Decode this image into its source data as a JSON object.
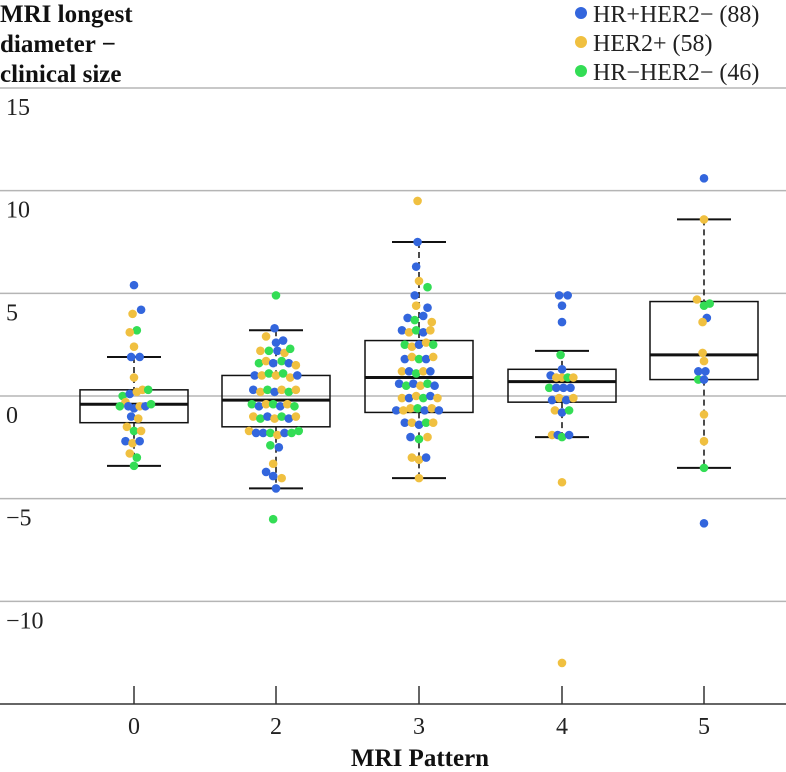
{
  "chart_data": {
    "type": "scatter",
    "subtype": "box-plot-with-beeswarm",
    "ylabel_lines": [
      "MRI longest",
      "diameter −",
      "clinical size"
    ],
    "xlabel": "MRI Pattern",
    "categories": [
      "0",
      "2",
      "3",
      "4",
      "5"
    ],
    "ylim": [
      -15,
      15
    ],
    "yticks": [
      {
        "value": 15,
        "label": "15"
      },
      {
        "value": 10,
        "label": "10"
      },
      {
        "value": 5,
        "label": "5"
      },
      {
        "value": 0,
        "label": "0"
      },
      {
        "value": -5,
        "label": "−5"
      },
      {
        "value": -10,
        "label": "−10"
      }
    ],
    "grid": true,
    "legend_position": "top-right",
    "series": [
      {
        "name": "HR+HER2− (88)",
        "color": "#3366dd"
      },
      {
        "name": "HER2+ (58)",
        "color": "#f0c040"
      },
      {
        "name": "HR−HER2− (46)",
        "color": "#33dd55"
      }
    ],
    "boxes": [
      {
        "category": "0",
        "whisker_low": -3.4,
        "q1": -1.3,
        "median": -0.4,
        "q3": 0.3,
        "whisker_high": 1.9
      },
      {
        "category": "2",
        "whisker_low": -4.5,
        "q1": -1.5,
        "median": -0.2,
        "q3": 1.0,
        "whisker_high": 3.2
      },
      {
        "category": "3",
        "whisker_low": -4.0,
        "q1": -0.8,
        "median": 0.9,
        "q3": 2.7,
        "whisker_high": 7.5
      },
      {
        "category": "4",
        "whisker_low": -2.0,
        "q1": -0.3,
        "median": 0.7,
        "q3": 1.3,
        "whisker_high": 2.2
      },
      {
        "category": "5",
        "whisker_low": -3.5,
        "q1": 0.8,
        "median": 2.0,
        "q3": 4.6,
        "whisker_high": 8.6
      }
    ],
    "points": [
      {
        "c": 0,
        "dx": -0.0,
        "y": 5.4,
        "s": 0
      },
      {
        "c": 0,
        "dx": 0.05,
        "y": 4.2,
        "s": 0
      },
      {
        "c": 0,
        "dx": -0.01,
        "y": 4.0,
        "s": 1
      },
      {
        "c": 0,
        "dx": 0.02,
        "y": 3.2,
        "s": 2
      },
      {
        "c": 0,
        "dx": -0.03,
        "y": 3.1,
        "s": 1
      },
      {
        "c": 0,
        "dx": 0.0,
        "y": 2.4,
        "s": 1
      },
      {
        "c": 0,
        "dx": -0.02,
        "y": 1.9,
        "s": 0
      },
      {
        "c": 0,
        "dx": 0.04,
        "y": 1.9,
        "s": 0
      },
      {
        "c": 0,
        "dx": 0.0,
        "y": 0.9,
        "s": 1
      },
      {
        "c": 0,
        "dx": -0.08,
        "y": 0.0,
        "s": 2
      },
      {
        "c": 0,
        "dx": -0.03,
        "y": 0.1,
        "s": 0
      },
      {
        "c": 0,
        "dx": 0.02,
        "y": 0.2,
        "s": 1
      },
      {
        "c": 0,
        "dx": 0.06,
        "y": 0.3,
        "s": 1
      },
      {
        "c": 0,
        "dx": 0.1,
        "y": 0.3,
        "s": 2
      },
      {
        "c": 0,
        "dx": -0.06,
        "y": -0.3,
        "s": 1
      },
      {
        "c": 0,
        "dx": -0.1,
        "y": -0.5,
        "s": 2
      },
      {
        "c": 0,
        "dx": -0.04,
        "y": -0.5,
        "s": 0
      },
      {
        "c": 0,
        "dx": 0.0,
        "y": -0.6,
        "s": 0
      },
      {
        "c": 0,
        "dx": 0.04,
        "y": -0.5,
        "s": 1
      },
      {
        "c": 0,
        "dx": 0.08,
        "y": -0.5,
        "s": 0
      },
      {
        "c": 0,
        "dx": 0.12,
        "y": -0.4,
        "s": 2
      },
      {
        "c": 0,
        "dx": -0.02,
        "y": -1.0,
        "s": 0
      },
      {
        "c": 0,
        "dx": 0.03,
        "y": -1.1,
        "s": 1
      },
      {
        "c": 0,
        "dx": -0.05,
        "y": -1.5,
        "s": 1
      },
      {
        "c": 0,
        "dx": 0.0,
        "y": -1.7,
        "s": 2
      },
      {
        "c": 0,
        "dx": 0.05,
        "y": -1.7,
        "s": 1
      },
      {
        "c": 0,
        "dx": -0.06,
        "y": -2.2,
        "s": 0
      },
      {
        "c": 0,
        "dx": -0.01,
        "y": -2.3,
        "s": 1
      },
      {
        "c": 0,
        "dx": 0.04,
        "y": -2.2,
        "s": 0
      },
      {
        "c": 0,
        "dx": -0.03,
        "y": -2.8,
        "s": 1
      },
      {
        "c": 0,
        "dx": 0.02,
        "y": -3.0,
        "s": 2
      },
      {
        "c": 0,
        "dx": 0.0,
        "y": -3.4,
        "s": 2
      },
      {
        "c": 1,
        "dx": 0.0,
        "y": 4.9,
        "s": 2
      },
      {
        "c": 1,
        "dx": -0.01,
        "y": 3.3,
        "s": 0
      },
      {
        "c": 1,
        "dx": -0.07,
        "y": 2.9,
        "s": 1
      },
      {
        "c": 1,
        "dx": 0.0,
        "y": 2.6,
        "s": 0
      },
      {
        "c": 1,
        "dx": 0.05,
        "y": 2.7,
        "s": 0
      },
      {
        "c": 1,
        "dx": -0.11,
        "y": 2.2,
        "s": 1
      },
      {
        "c": 1,
        "dx": -0.05,
        "y": 2.2,
        "s": 2
      },
      {
        "c": 1,
        "dx": 0.01,
        "y": 2.2,
        "s": 0
      },
      {
        "c": 1,
        "dx": 0.06,
        "y": 2.1,
        "s": 1
      },
      {
        "c": 1,
        "dx": 0.1,
        "y": 2.3,
        "s": 2
      },
      {
        "c": 1,
        "dx": -0.12,
        "y": 1.6,
        "s": 2
      },
      {
        "c": 1,
        "dx": -0.07,
        "y": 1.7,
        "s": 1
      },
      {
        "c": 1,
        "dx": -0.02,
        "y": 1.6,
        "s": 0
      },
      {
        "c": 1,
        "dx": 0.04,
        "y": 1.7,
        "s": 2
      },
      {
        "c": 1,
        "dx": 0.09,
        "y": 1.6,
        "s": 0
      },
      {
        "c": 1,
        "dx": 0.14,
        "y": 1.5,
        "s": 1
      },
      {
        "c": 1,
        "dx": -0.15,
        "y": 1.0,
        "s": 0
      },
      {
        "c": 1,
        "dx": -0.1,
        "y": 1.0,
        "s": 1
      },
      {
        "c": 1,
        "dx": -0.05,
        "y": 1.1,
        "s": 2
      },
      {
        "c": 1,
        "dx": 0.0,
        "y": 1.0,
        "s": 1
      },
      {
        "c": 1,
        "dx": 0.05,
        "y": 1.1,
        "s": 2
      },
      {
        "c": 1,
        "dx": 0.1,
        "y": 0.9,
        "s": 1
      },
      {
        "c": 1,
        "dx": 0.15,
        "y": 1.0,
        "s": 0
      },
      {
        "c": 1,
        "dx": -0.16,
        "y": 0.3,
        "s": 0
      },
      {
        "c": 1,
        "dx": -0.11,
        "y": 0.2,
        "s": 1
      },
      {
        "c": 1,
        "dx": -0.06,
        "y": 0.3,
        "s": 2
      },
      {
        "c": 1,
        "dx": -0.01,
        "y": 0.2,
        "s": 0
      },
      {
        "c": 1,
        "dx": 0.04,
        "y": 0.3,
        "s": 1
      },
      {
        "c": 1,
        "dx": 0.09,
        "y": 0.2,
        "s": 2
      },
      {
        "c": 1,
        "dx": 0.14,
        "y": 0.3,
        "s": 1
      },
      {
        "c": 1,
        "dx": -0.17,
        "y": -0.4,
        "s": 2
      },
      {
        "c": 1,
        "dx": -0.12,
        "y": -0.5,
        "s": 0
      },
      {
        "c": 1,
        "dx": -0.07,
        "y": -0.4,
        "s": 1
      },
      {
        "c": 1,
        "dx": -0.02,
        "y": -0.4,
        "s": 2
      },
      {
        "c": 1,
        "dx": 0.03,
        "y": -0.5,
        "s": 0
      },
      {
        "c": 1,
        "dx": 0.08,
        "y": -0.4,
        "s": 1
      },
      {
        "c": 1,
        "dx": 0.13,
        "y": -0.5,
        "s": 2
      },
      {
        "c": 1,
        "dx": -0.16,
        "y": -1.0,
        "s": 1
      },
      {
        "c": 1,
        "dx": -0.11,
        "y": -1.1,
        "s": 2
      },
      {
        "c": 1,
        "dx": -0.06,
        "y": -1.0,
        "s": 0
      },
      {
        "c": 1,
        "dx": -0.01,
        "y": -1.1,
        "s": 1
      },
      {
        "c": 1,
        "dx": 0.04,
        "y": -1.0,
        "s": 2
      },
      {
        "c": 1,
        "dx": 0.09,
        "y": -1.1,
        "s": 0
      },
      {
        "c": 1,
        "dx": 0.14,
        "y": -1.0,
        "s": 1
      },
      {
        "c": 1,
        "dx": -0.19,
        "y": -1.7,
        "s": 1
      },
      {
        "c": 1,
        "dx": -0.14,
        "y": -1.8,
        "s": 0
      },
      {
        "c": 1,
        "dx": -0.09,
        "y": -1.8,
        "s": 0
      },
      {
        "c": 1,
        "dx": -0.04,
        "y": -1.8,
        "s": 2
      },
      {
        "c": 1,
        "dx": 0.01,
        "y": -1.9,
        "s": 1
      },
      {
        "c": 1,
        "dx": 0.06,
        "y": -1.8,
        "s": 0
      },
      {
        "c": 1,
        "dx": 0.11,
        "y": -1.8,
        "s": 2
      },
      {
        "c": 1,
        "dx": 0.16,
        "y": -1.7,
        "s": 2
      },
      {
        "c": 1,
        "dx": -0.04,
        "y": -2.4,
        "s": 2
      },
      {
        "c": 1,
        "dx": 0.02,
        "y": -2.5,
        "s": 0
      },
      {
        "c": 1,
        "dx": -0.02,
        "y": -3.3,
        "s": 1
      },
      {
        "c": 1,
        "dx": -0.07,
        "y": -3.7,
        "s": 0
      },
      {
        "c": 1,
        "dx": -0.02,
        "y": -3.9,
        "s": 0
      },
      {
        "c": 1,
        "dx": 0.04,
        "y": -4.0,
        "s": 1
      },
      {
        "c": 1,
        "dx": 0.0,
        "y": -4.5,
        "s": 0
      },
      {
        "c": 1,
        "dx": -0.02,
        "y": -6.0,
        "s": 2
      },
      {
        "c": 2,
        "dx": -0.01,
        "y": 9.5,
        "s": 1
      },
      {
        "c": 2,
        "dx": -0.01,
        "y": 7.5,
        "s": 0
      },
      {
        "c": 2,
        "dx": -0.02,
        "y": 6.3,
        "s": 0
      },
      {
        "c": 2,
        "dx": 0.0,
        "y": 5.6,
        "s": 1
      },
      {
        "c": 2,
        "dx": 0.06,
        "y": 5.3,
        "s": 2
      },
      {
        "c": 2,
        "dx": -0.03,
        "y": 4.9,
        "s": 0
      },
      {
        "c": 2,
        "dx": -0.02,
        "y": 4.4,
        "s": 1
      },
      {
        "c": 2,
        "dx": 0.06,
        "y": 4.3,
        "s": 0
      },
      {
        "c": 2,
        "dx": -0.08,
        "y": 3.8,
        "s": 0
      },
      {
        "c": 2,
        "dx": -0.03,
        "y": 3.7,
        "s": 2
      },
      {
        "c": 2,
        "dx": 0.03,
        "y": 3.9,
        "s": 0
      },
      {
        "c": 2,
        "dx": 0.09,
        "y": 3.6,
        "s": 1
      },
      {
        "c": 2,
        "dx": -0.12,
        "y": 3.2,
        "s": 0
      },
      {
        "c": 2,
        "dx": -0.07,
        "y": 3.1,
        "s": 1
      },
      {
        "c": 2,
        "dx": -0.02,
        "y": 3.2,
        "s": 2
      },
      {
        "c": 2,
        "dx": 0.03,
        "y": 3.1,
        "s": 0
      },
      {
        "c": 2,
        "dx": 0.08,
        "y": 3.2,
        "s": 1
      },
      {
        "c": 2,
        "dx": -0.1,
        "y": 2.5,
        "s": 2
      },
      {
        "c": 2,
        "dx": -0.05,
        "y": 2.4,
        "s": 1
      },
      {
        "c": 2,
        "dx": 0.0,
        "y": 2.5,
        "s": 0
      },
      {
        "c": 2,
        "dx": 0.05,
        "y": 2.6,
        "s": 1
      },
      {
        "c": 2,
        "dx": 0.1,
        "y": 2.5,
        "s": 2
      },
      {
        "c": 2,
        "dx": -0.1,
        "y": 1.8,
        "s": 0
      },
      {
        "c": 2,
        "dx": -0.05,
        "y": 1.9,
        "s": 1
      },
      {
        "c": 2,
        "dx": 0.0,
        "y": 1.8,
        "s": 2
      },
      {
        "c": 2,
        "dx": 0.05,
        "y": 1.8,
        "s": 0
      },
      {
        "c": 2,
        "dx": 0.1,
        "y": 1.9,
        "s": 1
      },
      {
        "c": 2,
        "dx": -0.12,
        "y": 1.2,
        "s": 1
      },
      {
        "c": 2,
        "dx": -0.07,
        "y": 1.2,
        "s": 0
      },
      {
        "c": 2,
        "dx": -0.02,
        "y": 1.1,
        "s": 2
      },
      {
        "c": 2,
        "dx": 0.03,
        "y": 1.2,
        "s": 1
      },
      {
        "c": 2,
        "dx": 0.08,
        "y": 1.2,
        "s": 0
      },
      {
        "c": 2,
        "dx": -0.14,
        "y": 0.6,
        "s": 0
      },
      {
        "c": 2,
        "dx": -0.09,
        "y": 0.5,
        "s": 2
      },
      {
        "c": 2,
        "dx": -0.04,
        "y": 0.6,
        "s": 0
      },
      {
        "c": 2,
        "dx": 0.01,
        "y": 0.5,
        "s": 1
      },
      {
        "c": 2,
        "dx": 0.06,
        "y": 0.6,
        "s": 2
      },
      {
        "c": 2,
        "dx": 0.11,
        "y": 0.5,
        "s": 0
      },
      {
        "c": 2,
        "dx": -0.12,
        "y": -0.1,
        "s": 1
      },
      {
        "c": 2,
        "dx": -0.07,
        "y": -0.1,
        "s": 0
      },
      {
        "c": 2,
        "dx": -0.02,
        "y": 0.0,
        "s": 1
      },
      {
        "c": 2,
        "dx": 0.03,
        "y": -0.1,
        "s": 2
      },
      {
        "c": 2,
        "dx": 0.08,
        "y": 0.0,
        "s": 0
      },
      {
        "c": 2,
        "dx": 0.13,
        "y": -0.1,
        "s": 1
      },
      {
        "c": 2,
        "dx": -0.16,
        "y": -0.7,
        "s": 0
      },
      {
        "c": 2,
        "dx": -0.11,
        "y": -0.7,
        "s": 1
      },
      {
        "c": 2,
        "dx": -0.06,
        "y": -0.6,
        "s": 1
      },
      {
        "c": 2,
        "dx": -0.01,
        "y": -0.6,
        "s": 2
      },
      {
        "c": 2,
        "dx": 0.04,
        "y": -0.7,
        "s": 0
      },
      {
        "c": 2,
        "dx": 0.09,
        "y": -0.6,
        "s": 1
      },
      {
        "c": 2,
        "dx": 0.14,
        "y": -0.7,
        "s": 0
      },
      {
        "c": 2,
        "dx": -0.1,
        "y": -1.3,
        "s": 0
      },
      {
        "c": 2,
        "dx": -0.05,
        "y": -1.3,
        "s": 1
      },
      {
        "c": 2,
        "dx": 0.0,
        "y": -1.4,
        "s": 0
      },
      {
        "c": 2,
        "dx": 0.05,
        "y": -1.3,
        "s": 2
      },
      {
        "c": 2,
        "dx": 0.1,
        "y": -1.3,
        "s": 1
      },
      {
        "c": 2,
        "dx": -0.06,
        "y": -2.0,
        "s": 0
      },
      {
        "c": 2,
        "dx": 0.0,
        "y": -2.1,
        "s": 2
      },
      {
        "c": 2,
        "dx": 0.06,
        "y": -2.0,
        "s": 1
      },
      {
        "c": 2,
        "dx": -0.05,
        "y": -3.0,
        "s": 1
      },
      {
        "c": 2,
        "dx": 0.0,
        "y": -3.1,
        "s": 1
      },
      {
        "c": 2,
        "dx": 0.05,
        "y": -3.0,
        "s": 0
      },
      {
        "c": 2,
        "dx": 0.0,
        "y": -4.0,
        "s": 1
      },
      {
        "c": 3,
        "dx": -0.02,
        "y": 4.9,
        "s": 0
      },
      {
        "c": 3,
        "dx": 0.04,
        "y": 4.9,
        "s": 0
      },
      {
        "c": 3,
        "dx": 0.0,
        "y": 4.4,
        "s": 0
      },
      {
        "c": 3,
        "dx": 0.0,
        "y": 3.6,
        "s": 0
      },
      {
        "c": 3,
        "dx": -0.01,
        "y": 2.0,
        "s": 2
      },
      {
        "c": 3,
        "dx": 0.0,
        "y": 1.3,
        "s": 0
      },
      {
        "c": 3,
        "dx": -0.08,
        "y": 1.0,
        "s": 0
      },
      {
        "c": 3,
        "dx": -0.04,
        "y": 0.9,
        "s": 1
      },
      {
        "c": 3,
        "dx": 0.0,
        "y": 0.9,
        "s": 1
      },
      {
        "c": 3,
        "dx": 0.04,
        "y": 0.9,
        "s": 2
      },
      {
        "c": 3,
        "dx": 0.08,
        "y": 0.9,
        "s": 1
      },
      {
        "c": 3,
        "dx": -0.09,
        "y": 0.4,
        "s": 2
      },
      {
        "c": 3,
        "dx": -0.04,
        "y": 0.4,
        "s": 0
      },
      {
        "c": 3,
        "dx": 0.01,
        "y": 0.4,
        "s": 0
      },
      {
        "c": 3,
        "dx": 0.06,
        "y": 0.4,
        "s": 0
      },
      {
        "c": 3,
        "dx": -0.07,
        "y": -0.2,
        "s": 0
      },
      {
        "c": 3,
        "dx": -0.02,
        "y": -0.1,
        "s": 1
      },
      {
        "c": 3,
        "dx": 0.03,
        "y": -0.2,
        "s": 0
      },
      {
        "c": 3,
        "dx": 0.08,
        "y": -0.1,
        "s": 1
      },
      {
        "c": 3,
        "dx": -0.05,
        "y": -0.7,
        "s": 1
      },
      {
        "c": 3,
        "dx": 0.0,
        "y": -0.8,
        "s": 0
      },
      {
        "c": 3,
        "dx": 0.05,
        "y": -0.7,
        "s": 2
      },
      {
        "c": 3,
        "dx": -0.07,
        "y": -1.9,
        "s": 1
      },
      {
        "c": 3,
        "dx": -0.03,
        "y": -1.9,
        "s": 0
      },
      {
        "c": 3,
        "dx": 0.0,
        "y": -2.0,
        "s": 2
      },
      {
        "c": 3,
        "dx": 0.05,
        "y": -1.9,
        "s": 0
      },
      {
        "c": 3,
        "dx": 0.0,
        "y": -4.2,
        "s": 1
      },
      {
        "c": 3,
        "dx": 0.0,
        "y": -13.0,
        "s": 1
      },
      {
        "c": 4,
        "dx": 0.0,
        "y": 10.6,
        "s": 0
      },
      {
        "c": 4,
        "dx": 0.0,
        "y": 8.6,
        "s": 1
      },
      {
        "c": 4,
        "dx": -0.05,
        "y": 4.7,
        "s": 1
      },
      {
        "c": 4,
        "dx": 0.0,
        "y": 4.4,
        "s": 2
      },
      {
        "c": 4,
        "dx": 0.04,
        "y": 4.5,
        "s": 2
      },
      {
        "c": 4,
        "dx": 0.02,
        "y": 3.8,
        "s": 0
      },
      {
        "c": 4,
        "dx": -0.01,
        "y": 3.6,
        "s": 1
      },
      {
        "c": 4,
        "dx": -0.01,
        "y": 2.1,
        "s": 1
      },
      {
        "c": 4,
        "dx": 0.0,
        "y": 1.7,
        "s": 1
      },
      {
        "c": 4,
        "dx": -0.04,
        "y": 1.2,
        "s": 0
      },
      {
        "c": 4,
        "dx": 0.01,
        "y": 1.2,
        "s": 0
      },
      {
        "c": 4,
        "dx": -0.04,
        "y": 0.8,
        "s": 2
      },
      {
        "c": 4,
        "dx": 0.0,
        "y": 0.8,
        "s": 0
      },
      {
        "c": 4,
        "dx": 0.0,
        "y": -0.9,
        "s": 1
      },
      {
        "c": 4,
        "dx": 0.0,
        "y": -2.2,
        "s": 1
      },
      {
        "c": 4,
        "dx": 0.0,
        "y": -3.5,
        "s": 2
      },
      {
        "c": 4,
        "dx": 0.0,
        "y": -6.2,
        "s": 0
      }
    ]
  }
}
